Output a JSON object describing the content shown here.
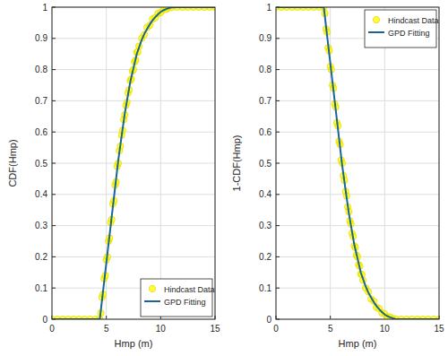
{
  "chart_data": [
    {
      "type": "line",
      "ylabel": "CDF(Hmp)",
      "xlabel": "Hmp (m)",
      "x": [
        0,
        0.5,
        1,
        1.5,
        2,
        2.5,
        3,
        3.5,
        4,
        4.4,
        4.5,
        4.6,
        4.7,
        4.8,
        4.9,
        5.0,
        5.1,
        5.2,
        5.3,
        5.4,
        5.5,
        5.6,
        5.7,
        5.8,
        5.9,
        6.0,
        6.1,
        6.2,
        6.3,
        6.4,
        6.5,
        6.6,
        6.7,
        6.8,
        6.9,
        7.0,
        7.1,
        7.2,
        7.3,
        7.4,
        7.5,
        7.6,
        7.7,
        7.8,
        7.9,
        8.0,
        8.25,
        8.5,
        8.75,
        9.0,
        9.25,
        9.5,
        9.75,
        10.0,
        10.25,
        10.5,
        10.75,
        11.0,
        11.5,
        12,
        12.5,
        13,
        13.5,
        14,
        14.5,
        15
      ],
      "xlim": [
        0,
        15
      ],
      "xticks": [
        0,
        5,
        10,
        15
      ],
      "ylim": [
        0,
        1
      ],
      "yticks": [
        0,
        0.1,
        0.2,
        0.3,
        0.4,
        0.5,
        0.6,
        0.7,
        0.8,
        0.9,
        1
      ],
      "grid": true,
      "legend": "lower right",
      "series": [
        {
          "name": "Hindcast Data",
          "type": "scatter",
          "marker": "circle",
          "color": "#ffff00",
          "values": [
            0,
            0,
            0,
            0,
            0,
            0,
            0,
            0,
            0,
            0,
            0.02,
            0.07,
            0.08,
            0.13,
            0.14,
            0.19,
            0.2,
            0.25,
            0.26,
            0.31,
            0.32,
            0.37,
            0.38,
            0.43,
            0.44,
            0.49,
            0.5,
            0.54,
            0.555,
            0.59,
            0.605,
            0.64,
            0.655,
            0.685,
            0.695,
            0.725,
            0.735,
            0.765,
            0.77,
            0.795,
            0.8,
            0.825,
            0.83,
            0.855,
            0.857,
            0.875,
            0.9,
            0.912,
            0.935,
            0.942,
            0.962,
            0.966,
            0.98,
            0.983,
            0.992,
            0.993,
            0.998,
            0.999,
            1,
            1,
            1,
            1,
            1,
            1,
            1,
            1
          ]
        },
        {
          "name": "GPD Fitting",
          "type": "line",
          "line_style": "solid",
          "color": "#1a6496",
          "values": [
            0,
            0,
            0,
            0,
            0,
            0,
            0,
            0,
            0,
            0,
            0.03,
            0.06,
            0.09,
            0.12,
            0.15,
            0.18,
            0.21,
            0.24,
            0.27,
            0.3,
            0.33,
            0.36,
            0.39,
            0.42,
            0.45,
            0.48,
            0.51,
            0.535,
            0.56,
            0.585,
            0.61,
            0.635,
            0.66,
            0.68,
            0.7,
            0.72,
            0.74,
            0.76,
            0.775,
            0.79,
            0.805,
            0.82,
            0.835,
            0.85,
            0.86,
            0.87,
            0.895,
            0.915,
            0.93,
            0.945,
            0.958,
            0.968,
            0.977,
            0.985,
            0.99,
            0.994,
            0.997,
            0.999,
            1,
            1,
            1,
            1,
            1,
            1,
            1,
            1
          ]
        }
      ]
    },
    {
      "type": "line",
      "ylabel": "1-CDF(Hmp)",
      "xlabel": "Hmp (m)",
      "x": [
        0,
        0.5,
        1,
        1.5,
        2,
        2.5,
        3,
        3.5,
        4,
        4.4,
        4.5,
        4.6,
        4.7,
        4.8,
        4.9,
        5.0,
        5.1,
        5.2,
        5.3,
        5.4,
        5.5,
        5.6,
        5.7,
        5.8,
        5.9,
        6.0,
        6.1,
        6.2,
        6.3,
        6.4,
        6.5,
        6.6,
        6.7,
        6.8,
        6.9,
        7.0,
        7.1,
        7.2,
        7.3,
        7.4,
        7.5,
        7.6,
        7.7,
        7.8,
        7.9,
        8.0,
        8.25,
        8.5,
        8.75,
        9.0,
        9.25,
        9.5,
        9.75,
        10.0,
        10.25,
        10.5,
        10.75,
        11.0,
        11.5,
        12,
        12.5,
        13,
        13.5,
        14,
        14.5,
        15
      ],
      "xlim": [
        0,
        15
      ],
      "xticks": [
        0,
        5,
        10,
        15
      ],
      "ylim": [
        0,
        1
      ],
      "yticks": [
        0,
        0.1,
        0.2,
        0.3,
        0.4,
        0.5,
        0.6,
        0.7,
        0.8,
        0.9,
        1
      ],
      "grid": true,
      "legend": "upper right",
      "series": [
        {
          "name": "Hindcast Data",
          "type": "scatter",
          "marker": "circle",
          "color": "#ffff00",
          "values": [
            1,
            1,
            1,
            1,
            1,
            1,
            1,
            1,
            1,
            1,
            0.98,
            0.93,
            0.92,
            0.87,
            0.86,
            0.81,
            0.8,
            0.75,
            0.74,
            0.69,
            0.68,
            0.63,
            0.62,
            0.57,
            0.56,
            0.51,
            0.5,
            0.46,
            0.445,
            0.41,
            0.395,
            0.36,
            0.345,
            0.315,
            0.305,
            0.275,
            0.265,
            0.235,
            0.23,
            0.205,
            0.2,
            0.175,
            0.17,
            0.145,
            0.143,
            0.125,
            0.1,
            0.088,
            0.065,
            0.058,
            0.038,
            0.034,
            0.02,
            0.017,
            0.008,
            0.007,
            0.002,
            0.001,
            0,
            0,
            0,
            0,
            0,
            0,
            0,
            0
          ]
        },
        {
          "name": "GPD Fitting",
          "type": "line",
          "line_style": "solid",
          "color": "#1a6496",
          "values": [
            1,
            1,
            1,
            1,
            1,
            1,
            1,
            1,
            1,
            1,
            0.97,
            0.94,
            0.91,
            0.88,
            0.85,
            0.82,
            0.79,
            0.76,
            0.73,
            0.7,
            0.67,
            0.64,
            0.61,
            0.58,
            0.55,
            0.52,
            0.49,
            0.465,
            0.44,
            0.415,
            0.39,
            0.365,
            0.34,
            0.32,
            0.3,
            0.28,
            0.26,
            0.24,
            0.225,
            0.21,
            0.195,
            0.18,
            0.165,
            0.15,
            0.14,
            0.13,
            0.105,
            0.085,
            0.07,
            0.055,
            0.042,
            0.032,
            0.023,
            0.015,
            0.01,
            0.006,
            0.003,
            0.001,
            0,
            0,
            0,
            0,
            0,
            0,
            0,
            0
          ]
        }
      ]
    }
  ]
}
